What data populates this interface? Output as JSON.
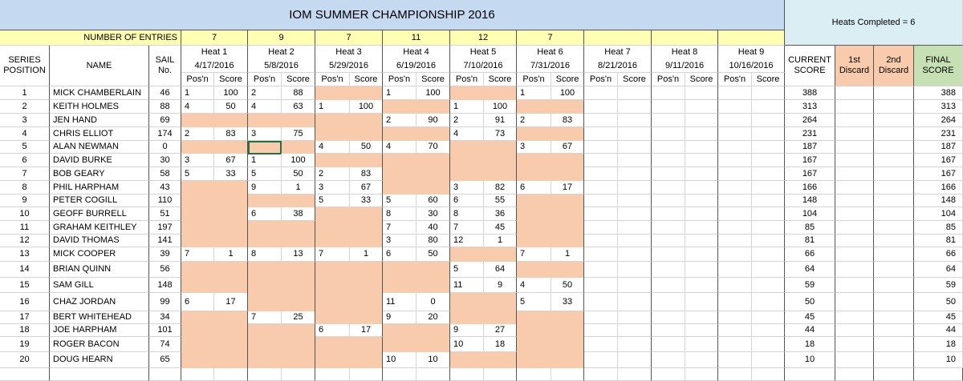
{
  "header": {
    "title": "IOM SUMMER CHAMPIONSHIP 2016",
    "heats_completed": "Heats Completed = 6",
    "entries_label": "NUMBER OF ENTRIES",
    "entries": [
      7,
      9,
      7,
      11,
      12,
      7
    ]
  },
  "columns": {
    "series_position": "SERIES POSITION",
    "name": "NAME",
    "sail": "SAIL No.",
    "heats": [
      {
        "name": "Heat 1",
        "date": "4/17/2016"
      },
      {
        "name": "Heat 2",
        "date": "5/8/2016"
      },
      {
        "name": "Heat 3",
        "date": "5/29/2016"
      },
      {
        "name": "Heat 4",
        "date": "6/19/2016"
      },
      {
        "name": "Heat 5",
        "date": "7/10/2016"
      },
      {
        "name": "Heat 6",
        "date": "7/31/2016"
      },
      {
        "name": "Heat 7",
        "date": "8/21/2016"
      },
      {
        "name": "Heat 8",
        "date": "9/11/2016"
      },
      {
        "name": "Heat 9",
        "date": "10/16/2016"
      }
    ],
    "pos_label": "Pos'n",
    "score_label": "Score",
    "current": "CURRENT SCORE",
    "discard1": "1st Discard",
    "discard2": "2nd Discard",
    "final": "FINAL SCORE"
  },
  "rows": [
    {
      "pos": 1,
      "name": "MICK CHAMBERLAIN",
      "sail": 46,
      "heats": [
        [
          1,
          100
        ],
        [
          2,
          88
        ],
        null,
        [
          1,
          100
        ],
        null,
        [
          1,
          100
        ]
      ],
      "current": 388,
      "final": 388
    },
    {
      "pos": 2,
      "name": "KEITH HOLMES",
      "sail": 88,
      "heats": [
        [
          4,
          50
        ],
        [
          4,
          63
        ],
        [
          1,
          100
        ],
        null,
        [
          1,
          100
        ],
        null
      ],
      "current": 313,
      "final": 313
    },
    {
      "pos": 3,
      "name": "JEN HAND",
      "sail": 69,
      "heats": [
        null,
        null,
        null,
        [
          2,
          90
        ],
        [
          2,
          91
        ],
        [
          2,
          83
        ]
      ],
      "current": 264,
      "final": 264
    },
    {
      "pos": 4,
      "name": "CHRIS ELLIOT",
      "sail": 174,
      "heats": [
        [
          2,
          83
        ],
        [
          3,
          75
        ],
        null,
        null,
        [
          4,
          73
        ],
        null
      ],
      "current": 231,
      "final": 231
    },
    {
      "pos": 5,
      "name": "ALAN NEWMAN",
      "sail": 0,
      "heats": [
        null,
        null,
        [
          4,
          50
        ],
        [
          4,
          70
        ],
        null,
        [
          3,
          67
        ]
      ],
      "current": 187,
      "final": 187
    },
    {
      "pos": 6,
      "name": "DAVID BURKE",
      "sail": 30,
      "heats": [
        [
          3,
          67
        ],
        [
          1,
          100
        ],
        null,
        null,
        null,
        null
      ],
      "current": 167,
      "final": 167
    },
    {
      "pos": 7,
      "name": "BOB GEARY",
      "sail": 58,
      "heats": [
        [
          5,
          33
        ],
        [
          5,
          50
        ],
        [
          2,
          83
        ],
        null,
        null,
        null
      ],
      "current": 167,
      "final": 167
    },
    {
      "pos": 8,
      "name": "PHIL HARPHAM",
      "sail": 43,
      "heats": [
        null,
        [
          9,
          1
        ],
        [
          3,
          67
        ],
        null,
        [
          3,
          82
        ],
        [
          6,
          17
        ]
      ],
      "current": 166,
      "final": 166
    },
    {
      "pos": 9,
      "name": "PETER COGILL",
      "sail": 110,
      "heats": [
        null,
        null,
        [
          5,
          33
        ],
        [
          5,
          60
        ],
        [
          6,
          55
        ],
        null
      ],
      "current": 148,
      "final": 148
    },
    {
      "pos": 10,
      "name": "GEOFF BURRELL",
      "sail": 51,
      "heats": [
        null,
        [
          6,
          38
        ],
        null,
        [
          8,
          30
        ],
        [
          8,
          36
        ],
        null
      ],
      "current": 104,
      "final": 104
    },
    {
      "pos": 11,
      "name": "GRAHAM KEITHLEY",
      "sail": 197,
      "heats": [
        null,
        null,
        null,
        [
          7,
          40
        ],
        [
          7,
          45
        ],
        null
      ],
      "current": 85,
      "final": 85
    },
    {
      "pos": 12,
      "name": "DAVID THOMAS",
      "sail": 141,
      "heats": [
        null,
        null,
        null,
        [
          3,
          80
        ],
        [
          12,
          1
        ],
        null
      ],
      "current": 81,
      "final": 81
    },
    {
      "pos": 13,
      "name": "MICK COOPER",
      "sail": 39,
      "heats": [
        [
          7,
          1
        ],
        [
          8,
          13
        ],
        [
          7,
          1
        ],
        [
          6,
          50
        ],
        null,
        [
          7,
          1
        ]
      ],
      "current": 66,
      "final": 66
    },
    {
      "pos": 14,
      "name": "BRIAN QUINN",
      "sail": 56,
      "heats": [
        null,
        null,
        null,
        null,
        [
          5,
          64
        ],
        null
      ],
      "current": 64,
      "final": 64
    },
    {
      "pos": 15,
      "name": "SAM GILL",
      "sail": 148,
      "heats": [
        null,
        null,
        null,
        null,
        [
          11,
          9
        ],
        [
          4,
          50
        ]
      ],
      "current": 59,
      "final": 59
    },
    {
      "pos": 16,
      "name": "CHAZ JORDAN",
      "sail": 99,
      "heats": [
        [
          6,
          17
        ],
        null,
        null,
        [
          11,
          0
        ],
        null,
        [
          5,
          33
        ]
      ],
      "current": 50,
      "final": 50
    },
    {
      "pos": 17,
      "name": "BERT WHITEHEAD",
      "sail": 34,
      "heats": [
        null,
        [
          7,
          25
        ],
        null,
        [
          9,
          20
        ],
        null,
        null
      ],
      "current": 45,
      "final": 45
    },
    {
      "pos": 18,
      "name": "JOE HARPHAM",
      "sail": 101,
      "heats": [
        null,
        null,
        [
          6,
          17
        ],
        null,
        [
          9,
          27
        ],
        null
      ],
      "current": 44,
      "final": 44
    },
    {
      "pos": 19,
      "name": "ROGER BACON",
      "sail": 74,
      "heats": [
        null,
        null,
        null,
        null,
        [
          10,
          18
        ],
        null
      ],
      "current": 18,
      "final": 18
    },
    {
      "pos": 20,
      "name": "DOUG HEARN",
      "sail": 65,
      "heats": [
        null,
        null,
        null,
        [
          10,
          10
        ],
        null,
        null
      ],
      "current": 10,
      "final": 10
    }
  ]
}
